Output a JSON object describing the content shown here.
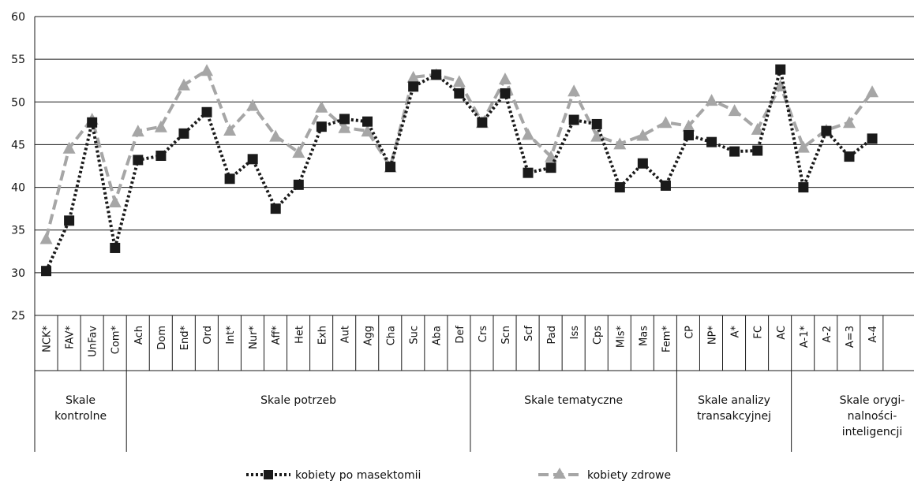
{
  "chart_data": {
    "type": "line",
    "ylim": [
      25,
      60
    ],
    "yticks": [
      "25",
      "30",
      "35",
      "40",
      "45",
      "50",
      "55",
      "60"
    ],
    "categories": [
      "NCK*",
      "FAV*",
      "UnFav",
      "Com*",
      "Ach",
      "Dom",
      "End*",
      "Ord",
      "Int*",
      "Nur*",
      "Aff*",
      "Het",
      "Exh",
      "Aut",
      "Agg",
      "Cha",
      "Suc",
      "Aba",
      "Def",
      "Crs",
      "Scn",
      "Scf",
      "Pad",
      "Iss",
      "Cps",
      "Mls*",
      "Mas",
      "Fem*",
      "CP",
      "NP*",
      "A*",
      "FC",
      "AC",
      "A-1*",
      "A-2",
      "A=3",
      "A-4"
    ],
    "groups": [
      {
        "label": "Skale kontrolne",
        "lines": [
          "Skale",
          "kontrolne"
        ],
        "start": 0,
        "end": 3
      },
      {
        "label": "Skale potrzeb",
        "lines": [
          "Skale potrzeb"
        ],
        "start": 4,
        "end": 18
      },
      {
        "label": "Skale tematyczne",
        "lines": [
          "Skale tematyczne"
        ],
        "start": 19,
        "end": 27
      },
      {
        "label": "Skale analizy transakcyjnej",
        "lines": [
          "Skale analizy",
          "transakcyjnej"
        ],
        "start": 28,
        "end": 32
      },
      {
        "label": "Skale oryginalności-inteligencji",
        "lines": [
          "Skale orygi-",
          "nalności-",
          "inteligencji"
        ],
        "start": 33,
        "end": 36
      }
    ],
    "series": [
      {
        "name": "kobiety po masektomii",
        "color": "#1a1a1a",
        "marker": "square",
        "dash": "dotted",
        "values": [
          30.2,
          36.1,
          47.6,
          32.9,
          43.2,
          43.7,
          46.3,
          48.8,
          41.0,
          43.3,
          37.5,
          40.3,
          47.1,
          48.0,
          47.7,
          42.4,
          51.8,
          53.2,
          51.0,
          47.6,
          51.0,
          41.7,
          42.3,
          47.9,
          47.4,
          40.0,
          42.8,
          40.2,
          46.1,
          45.3,
          44.2,
          44.3,
          53.8,
          40.0,
          46.6,
          43.6,
          45.7
        ]
      },
      {
        "name": "kobiety zdrowe",
        "color": "#a6a6a6",
        "marker": "triangle",
        "dash": "dashed",
        "values": [
          34.0,
          44.6,
          48.0,
          38.3,
          46.6,
          47.1,
          52.0,
          53.7,
          46.7,
          49.6,
          46.0,
          44.1,
          49.4,
          47.0,
          46.6,
          42.4,
          52.9,
          53.2,
          52.4,
          47.6,
          52.7,
          46.2,
          43.6,
          51.3,
          46.0,
          45.1,
          46.1,
          47.6,
          47.2,
          50.2,
          49.0,
          46.8,
          51.9,
          44.7,
          46.7,
          47.6,
          51.2
        ]
      }
    ],
    "legend_position": "bottom-center",
    "grid": true
  }
}
